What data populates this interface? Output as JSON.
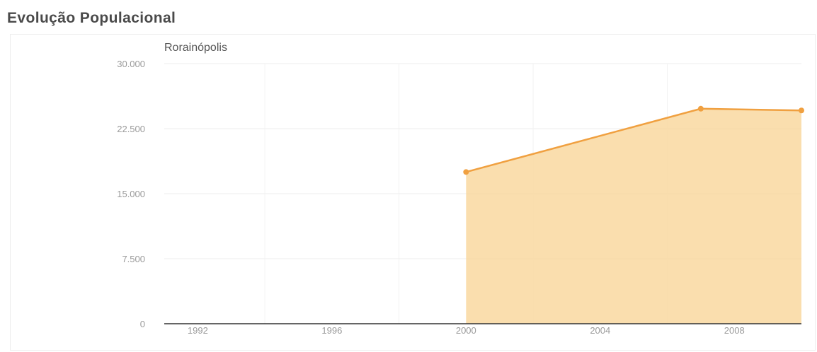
{
  "title": "Evolução Populacional",
  "chart_data": {
    "type": "area",
    "subtitle": "Rorainópolis",
    "x": [
      2000,
      2007,
      2010
    ],
    "series": [
      {
        "name": "Rorainópolis",
        "values": [
          17500,
          24800,
          24600
        ]
      }
    ],
    "xlim": [
      1991,
      2010
    ],
    "ylim": [
      0,
      30000
    ],
    "xticks": [
      1992,
      1996,
      2000,
      2004,
      2008
    ],
    "xtick_labels": [
      "1992",
      "1996",
      "2000",
      "2004",
      "2008"
    ],
    "yticks": [
      0,
      7500,
      15000,
      22500,
      30000
    ],
    "ytick_labels": [
      "0",
      "7.500",
      "15.000",
      "22.500",
      "30.000"
    ],
    "grid": true,
    "legend": "none",
    "colors": {
      "line": "#f0a040",
      "fill": "#f9d8a0",
      "marker": "#f0a040"
    }
  }
}
